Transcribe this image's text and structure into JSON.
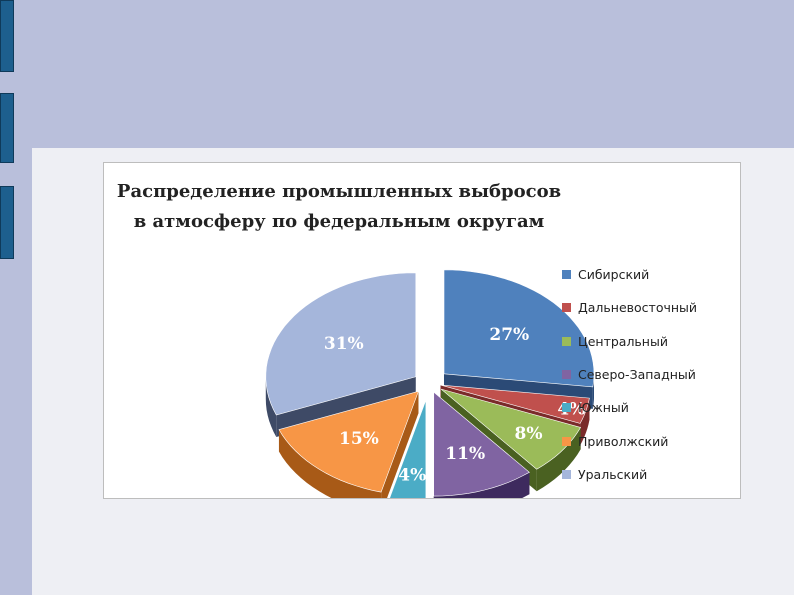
{
  "chart_data": {
    "type": "pie",
    "style": "3d-exploded",
    "title": [
      "Распределение промышленных выбросов",
      "в атмосферу по федеральным округам"
    ],
    "legend_position": "right",
    "slices": [
      {
        "label": "Сибирский",
        "value": 27,
        "display": "27%",
        "color": "#4f81bd",
        "side_color": "#2b4a76"
      },
      {
        "label": "Дальневосточный",
        "value": 4,
        "display": "4%",
        "color": "#c0504d",
        "side_color": "#7a2b2a"
      },
      {
        "label": "Центральный",
        "value": 8,
        "display": "8%",
        "color": "#9bbb59",
        "side_color": "#4a6121"
      },
      {
        "label": "Северо-Западный",
        "value": 11,
        "display": "11%",
        "color": "#8064a2",
        "side_color": "#3e2a5e"
      },
      {
        "label": "Южный",
        "value": 4,
        "display": "4%",
        "color": "#4bacc6",
        "side_color": "#216b7f"
      },
      {
        "label": "Приволжский",
        "value": 15,
        "display": "15%",
        "color": "#f79646",
        "side_color": "#a85a17"
      },
      {
        "label": "Уральский",
        "value": 31,
        "display": "31%",
        "color": "#a5b6db",
        "side_color": "#3e4a66"
      }
    ]
  }
}
